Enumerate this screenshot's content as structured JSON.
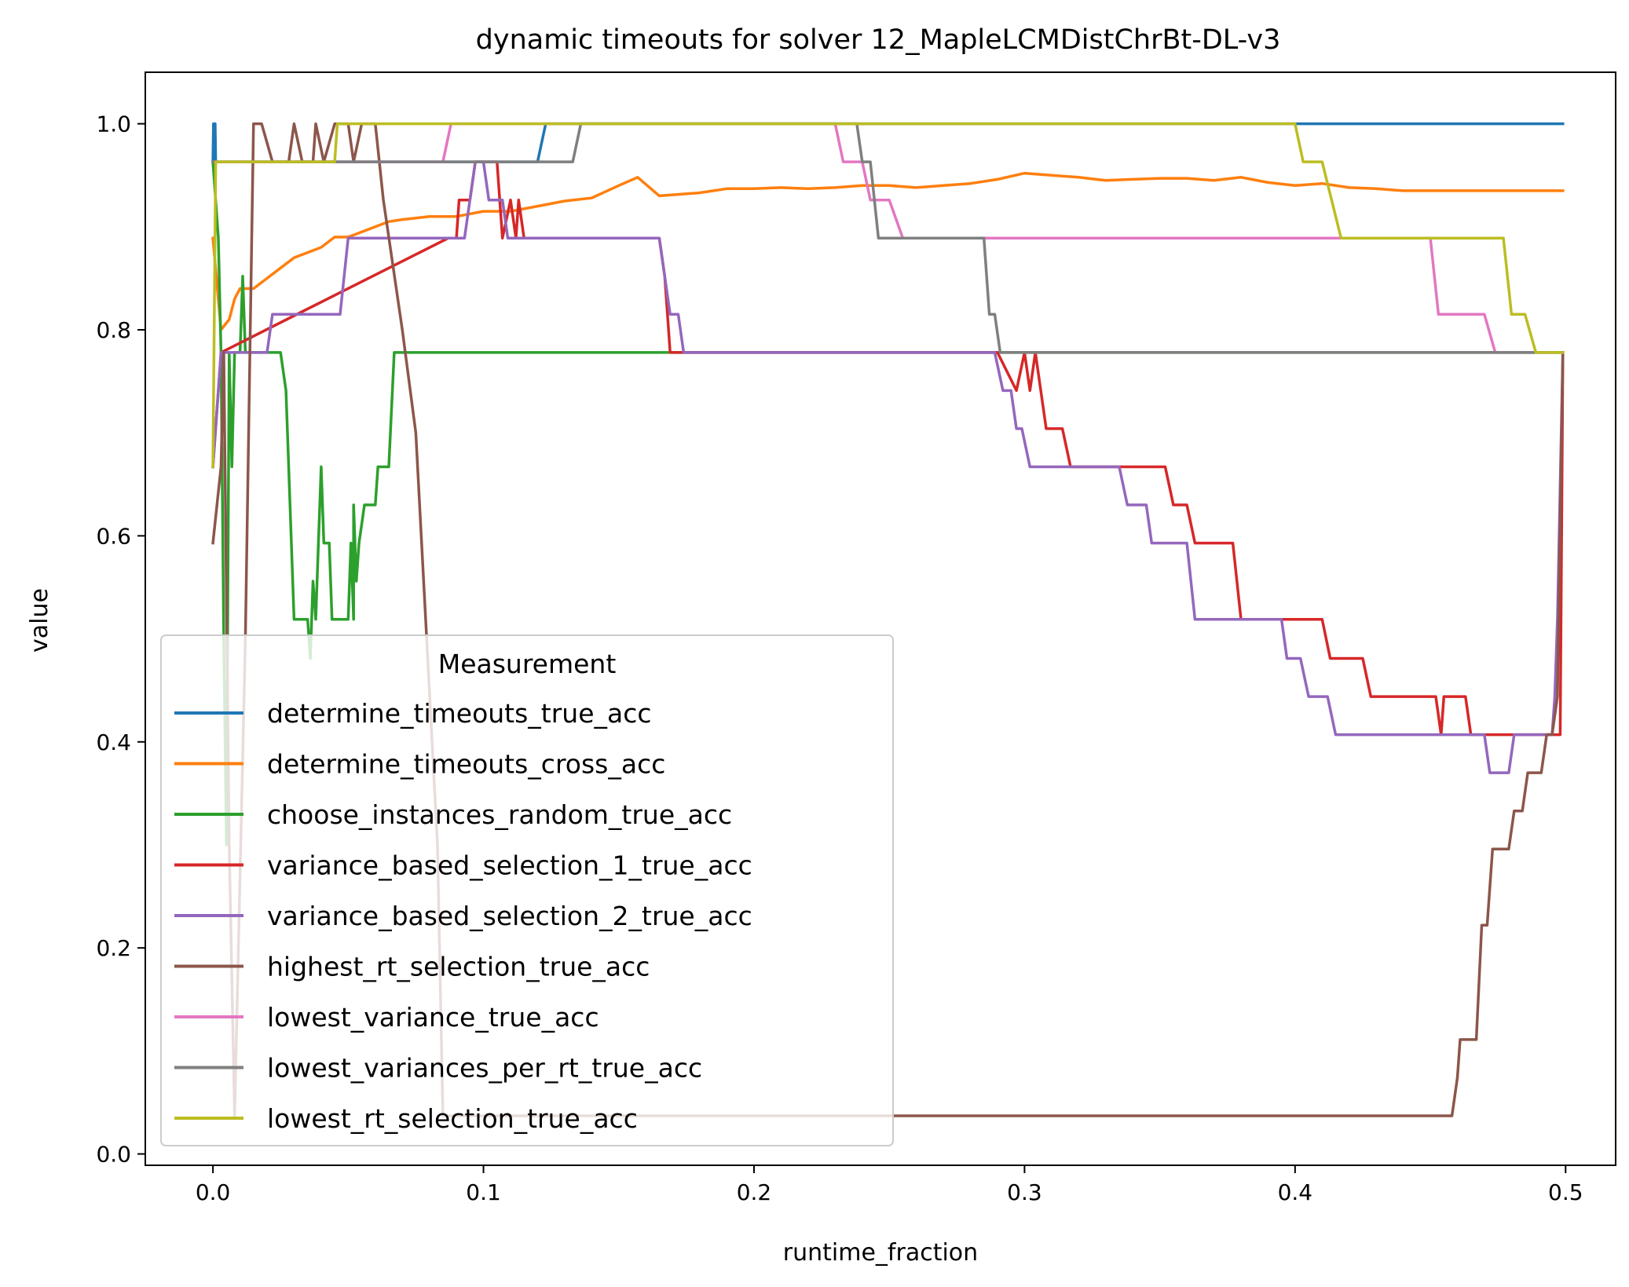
{
  "chart_data": {
    "type": "line",
    "title": "dynamic timeouts for solver 12_MapleLCMDistChrBt-DL-v3",
    "xlabel": "runtime_fraction",
    "ylabel": "value",
    "xlim": [
      -0.025,
      0.5185
    ],
    "ylim": [
      -0.011,
      1.05
    ],
    "xticks": [
      0.0,
      0.1,
      0.2,
      0.3,
      0.4,
      0.5
    ],
    "xtick_labels": [
      "0.0",
      "0.1",
      "0.2",
      "0.3",
      "0.4",
      "0.5"
    ],
    "yticks": [
      0.0,
      0.2,
      0.4,
      0.6,
      0.8,
      1.0
    ],
    "ytick_labels": [
      "0.0",
      "0.2",
      "0.4",
      "0.6",
      "0.8",
      "1.0"
    ],
    "grid": false,
    "legend": {
      "title": "Measurement",
      "location": "lower-left"
    },
    "series": [
      {
        "name": "determine_timeouts_true_acc",
        "color": "#1f77b4",
        "points": [
          [
            0.0,
            0.963
          ],
          [
            0.0002,
            1.0
          ],
          [
            0.0008,
            1.0
          ],
          [
            0.001,
            0.963
          ],
          [
            0.12,
            0.963
          ],
          [
            0.123,
            1.0
          ],
          [
            0.499,
            1.0
          ]
        ]
      },
      {
        "name": "determine_timeouts_cross_acc",
        "color": "#ff7f0e",
        "points": [
          [
            0.0,
            0.889
          ],
          [
            0.003,
            0.8
          ],
          [
            0.006,
            0.81
          ],
          [
            0.008,
            0.83
          ],
          [
            0.01,
            0.84
          ],
          [
            0.015,
            0.84
          ],
          [
            0.02,
            0.85
          ],
          [
            0.025,
            0.86
          ],
          [
            0.03,
            0.87
          ],
          [
            0.035,
            0.875
          ],
          [
            0.04,
            0.88
          ],
          [
            0.045,
            0.89
          ],
          [
            0.05,
            0.89
          ],
          [
            0.055,
            0.895
          ],
          [
            0.06,
            0.9
          ],
          [
            0.065,
            0.905
          ],
          [
            0.07,
            0.907
          ],
          [
            0.08,
            0.91
          ],
          [
            0.09,
            0.91
          ],
          [
            0.1,
            0.915
          ],
          [
            0.11,
            0.915
          ],
          [
            0.12,
            0.92
          ],
          [
            0.13,
            0.925
          ],
          [
            0.14,
            0.928
          ],
          [
            0.15,
            0.94
          ],
          [
            0.157,
            0.948
          ],
          [
            0.165,
            0.93
          ],
          [
            0.18,
            0.933
          ],
          [
            0.19,
            0.937
          ],
          [
            0.2,
            0.937
          ],
          [
            0.21,
            0.938
          ],
          [
            0.22,
            0.937
          ],
          [
            0.23,
            0.938
          ],
          [
            0.24,
            0.94
          ],
          [
            0.25,
            0.94
          ],
          [
            0.26,
            0.938
          ],
          [
            0.27,
            0.94
          ],
          [
            0.28,
            0.942
          ],
          [
            0.29,
            0.946
          ],
          [
            0.3,
            0.952
          ],
          [
            0.31,
            0.95
          ],
          [
            0.32,
            0.948
          ],
          [
            0.33,
            0.945
          ],
          [
            0.34,
            0.946
          ],
          [
            0.35,
            0.947
          ],
          [
            0.36,
            0.947
          ],
          [
            0.37,
            0.945
          ],
          [
            0.38,
            0.948
          ],
          [
            0.39,
            0.943
          ],
          [
            0.4,
            0.94
          ],
          [
            0.41,
            0.942
          ],
          [
            0.42,
            0.938
          ],
          [
            0.43,
            0.937
          ],
          [
            0.44,
            0.935
          ],
          [
            0.45,
            0.935
          ],
          [
            0.46,
            0.935
          ],
          [
            0.47,
            0.935
          ],
          [
            0.48,
            0.935
          ],
          [
            0.499,
            0.935
          ]
        ]
      },
      {
        "name": "choose_instances_random_true_acc",
        "color": "#2ca02c",
        "points": [
          [
            0.0,
            0.963
          ],
          [
            0.002,
            0.889
          ],
          [
            0.003,
            0.778
          ],
          [
            0.004,
            0.5
          ],
          [
            0.005,
            0.3
          ],
          [
            0.006,
            0.778
          ],
          [
            0.007,
            0.667
          ],
          [
            0.008,
            0.778
          ],
          [
            0.01,
            0.778
          ],
          [
            0.011,
            0.852
          ],
          [
            0.012,
            0.778
          ],
          [
            0.013,
            0.778
          ],
          [
            0.025,
            0.778
          ],
          [
            0.027,
            0.741
          ],
          [
            0.03,
            0.519
          ],
          [
            0.035,
            0.519
          ],
          [
            0.036,
            0.481
          ],
          [
            0.037,
            0.556
          ],
          [
            0.038,
            0.519
          ],
          [
            0.039,
            0.593
          ],
          [
            0.04,
            0.667
          ],
          [
            0.041,
            0.593
          ],
          [
            0.043,
            0.593
          ],
          [
            0.044,
            0.519
          ],
          [
            0.05,
            0.519
          ],
          [
            0.051,
            0.593
          ],
          [
            0.052,
            0.519
          ],
          [
            0.052,
            0.63
          ],
          [
            0.053,
            0.556
          ],
          [
            0.054,
            0.593
          ],
          [
            0.056,
            0.63
          ],
          [
            0.06,
            0.63
          ],
          [
            0.061,
            0.667
          ],
          [
            0.065,
            0.667
          ],
          [
            0.067,
            0.778
          ],
          [
            0.499,
            0.778
          ]
        ]
      },
      {
        "name": "variance_based_selection_1_true_acc",
        "color": "#d62728",
        "points": [
          [
            0.0,
            0.667
          ],
          [
            0.003,
            0.778
          ],
          [
            0.087,
            0.889
          ],
          [
            0.09,
            0.889
          ],
          [
            0.091,
            0.926
          ],
          [
            0.095,
            0.926
          ],
          [
            0.097,
            0.963
          ],
          [
            0.105,
            0.963
          ],
          [
            0.107,
            0.889
          ],
          [
            0.11,
            0.926
          ],
          [
            0.112,
            0.889
          ],
          [
            0.113,
            0.926
          ],
          [
            0.115,
            0.889
          ],
          [
            0.165,
            0.889
          ],
          [
            0.167,
            0.852
          ],
          [
            0.168,
            0.815
          ],
          [
            0.169,
            0.778
          ],
          [
            0.29,
            0.778
          ],
          [
            0.297,
            0.741
          ],
          [
            0.3,
            0.778
          ],
          [
            0.302,
            0.741
          ],
          [
            0.304,
            0.778
          ],
          [
            0.306,
            0.741
          ],
          [
            0.308,
            0.704
          ],
          [
            0.314,
            0.704
          ],
          [
            0.317,
            0.667
          ],
          [
            0.352,
            0.667
          ],
          [
            0.355,
            0.63
          ],
          [
            0.36,
            0.63
          ],
          [
            0.363,
            0.593
          ],
          [
            0.377,
            0.593
          ],
          [
            0.38,
            0.519
          ],
          [
            0.41,
            0.519
          ],
          [
            0.413,
            0.481
          ],
          [
            0.425,
            0.481
          ],
          [
            0.428,
            0.444
          ],
          [
            0.452,
            0.444
          ],
          [
            0.454,
            0.407
          ],
          [
            0.455,
            0.444
          ],
          [
            0.463,
            0.444
          ],
          [
            0.465,
            0.407
          ],
          [
            0.498,
            0.407
          ],
          [
            0.499,
            0.778
          ]
        ]
      },
      {
        "name": "variance_based_selection_2_true_acc",
        "color": "#9467bd",
        "points": [
          [
            0.0,
            0.667
          ],
          [
            0.003,
            0.778
          ],
          [
            0.02,
            0.778
          ],
          [
            0.022,
            0.815
          ],
          [
            0.047,
            0.815
          ],
          [
            0.05,
            0.889
          ],
          [
            0.093,
            0.889
          ],
          [
            0.097,
            0.963
          ],
          [
            0.1,
            0.963
          ],
          [
            0.102,
            0.926
          ],
          [
            0.107,
            0.926
          ],
          [
            0.109,
            0.889
          ],
          [
            0.165,
            0.889
          ],
          [
            0.167,
            0.852
          ],
          [
            0.169,
            0.815
          ],
          [
            0.172,
            0.815
          ],
          [
            0.174,
            0.778
          ],
          [
            0.289,
            0.778
          ],
          [
            0.292,
            0.741
          ],
          [
            0.295,
            0.741
          ],
          [
            0.297,
            0.704
          ],
          [
            0.299,
            0.704
          ],
          [
            0.302,
            0.667
          ],
          [
            0.335,
            0.667
          ],
          [
            0.338,
            0.63
          ],
          [
            0.345,
            0.63
          ],
          [
            0.347,
            0.593
          ],
          [
            0.36,
            0.593
          ],
          [
            0.363,
            0.519
          ],
          [
            0.395,
            0.519
          ],
          [
            0.397,
            0.481
          ],
          [
            0.402,
            0.481
          ],
          [
            0.405,
            0.444
          ],
          [
            0.412,
            0.444
          ],
          [
            0.415,
            0.407
          ],
          [
            0.47,
            0.407
          ],
          [
            0.472,
            0.37
          ],
          [
            0.479,
            0.37
          ],
          [
            0.481,
            0.407
          ],
          [
            0.495,
            0.407
          ],
          [
            0.496,
            0.444
          ],
          [
            0.497,
            0.519
          ],
          [
            0.499,
            0.778
          ]
        ]
      },
      {
        "name": "highest_rt_selection_true_acc",
        "color": "#8c564b",
        "points": [
          [
            0.0,
            0.593
          ],
          [
            0.003,
            0.667
          ],
          [
            0.004,
            0.778
          ],
          [
            0.006,
            0.3
          ],
          [
            0.008,
            0.037
          ],
          [
            0.012,
            0.5
          ],
          [
            0.015,
            1.0
          ],
          [
            0.018,
            1.0
          ],
          [
            0.022,
            0.963
          ],
          [
            0.028,
            0.963
          ],
          [
            0.03,
            1.0
          ],
          [
            0.033,
            0.963
          ],
          [
            0.037,
            0.963
          ],
          [
            0.038,
            1.0
          ],
          [
            0.041,
            0.963
          ],
          [
            0.045,
            1.0
          ],
          [
            0.05,
            1.0
          ],
          [
            0.052,
            0.963
          ],
          [
            0.055,
            1.0
          ],
          [
            0.06,
            1.0
          ],
          [
            0.063,
            0.926
          ],
          [
            0.07,
            0.8
          ],
          [
            0.075,
            0.7
          ],
          [
            0.08,
            0.45
          ],
          [
            0.083,
            0.3
          ],
          [
            0.085,
            0.037
          ],
          [
            0.458,
            0.037
          ],
          [
            0.46,
            0.074
          ],
          [
            0.461,
            0.111
          ],
          [
            0.467,
            0.111
          ],
          [
            0.469,
            0.222
          ],
          [
            0.471,
            0.222
          ],
          [
            0.473,
            0.296
          ],
          [
            0.479,
            0.296
          ],
          [
            0.481,
            0.333
          ],
          [
            0.484,
            0.333
          ],
          [
            0.486,
            0.37
          ],
          [
            0.491,
            0.37
          ],
          [
            0.493,
            0.407
          ],
          [
            0.495,
            0.407
          ],
          [
            0.497,
            0.444
          ],
          [
            0.499,
            0.778
          ]
        ]
      },
      {
        "name": "lowest_variance_true_acc",
        "color": "#e377c2",
        "points": [
          [
            0.0,
            0.963
          ],
          [
            0.002,
            0.963
          ],
          [
            0.085,
            0.963
          ],
          [
            0.088,
            1.0
          ],
          [
            0.23,
            1.0
          ],
          [
            0.233,
            0.963
          ],
          [
            0.24,
            0.963
          ],
          [
            0.243,
            0.926
          ],
          [
            0.25,
            0.926
          ],
          [
            0.255,
            0.889
          ],
          [
            0.45,
            0.889
          ],
          [
            0.453,
            0.815
          ],
          [
            0.47,
            0.815
          ],
          [
            0.474,
            0.778
          ],
          [
            0.499,
            0.778
          ]
        ]
      },
      {
        "name": "lowest_variances_per_rt_true_acc",
        "color": "#7f7f7f",
        "points": [
          [
            0.0,
            0.963
          ],
          [
            0.002,
            0.963
          ],
          [
            0.133,
            0.963
          ],
          [
            0.136,
            1.0
          ],
          [
            0.238,
            1.0
          ],
          [
            0.24,
            0.963
          ],
          [
            0.243,
            0.963
          ],
          [
            0.246,
            0.889
          ],
          [
            0.285,
            0.889
          ],
          [
            0.287,
            0.815
          ],
          [
            0.289,
            0.815
          ],
          [
            0.291,
            0.778
          ],
          [
            0.499,
            0.778
          ]
        ]
      },
      {
        "name": "lowest_rt_selection_true_acc",
        "color": "#bcbd22",
        "points": [
          [
            0.0,
            0.667
          ],
          [
            0.001,
            0.963
          ],
          [
            0.045,
            0.963
          ],
          [
            0.046,
            1.0
          ],
          [
            0.4,
            1.0
          ],
          [
            0.403,
            0.963
          ],
          [
            0.41,
            0.963
          ],
          [
            0.417,
            0.889
          ],
          [
            0.477,
            0.889
          ],
          [
            0.48,
            0.815
          ],
          [
            0.485,
            0.815
          ],
          [
            0.489,
            0.778
          ],
          [
            0.499,
            0.778
          ]
        ]
      }
    ]
  }
}
